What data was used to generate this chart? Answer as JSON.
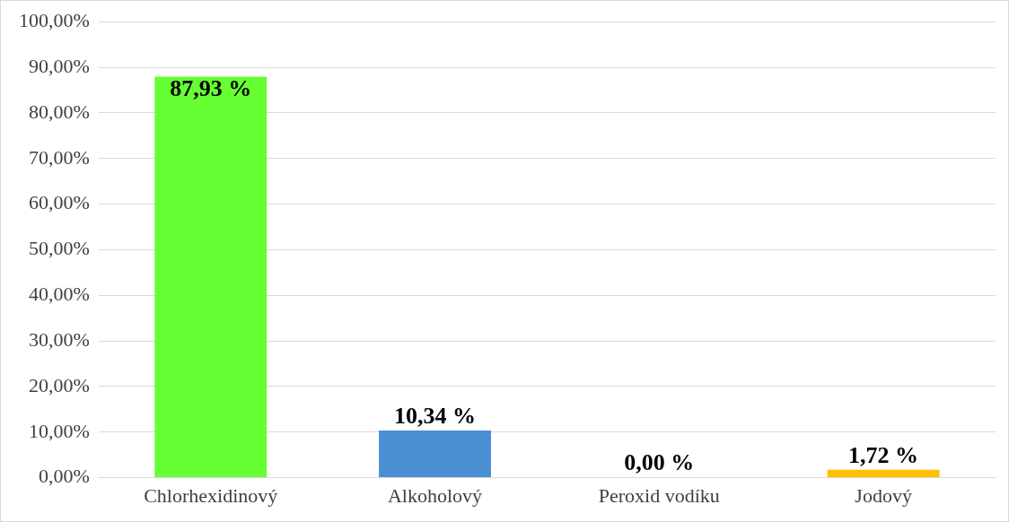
{
  "chart_data": {
    "type": "bar",
    "categories": [
      "Chlorhexidinový",
      "Alkoholový",
      "Peroxid vodíku",
      "Jodový"
    ],
    "values": [
      87.93,
      10.34,
      0,
      1.72
    ],
    "colors": [
      "#66ff33",
      "#4a8fd4",
      "#a5a5a5",
      "#ffc000"
    ],
    "value_labels": [
      "87,93 %",
      "10,34 %",
      "0,00 %",
      "1,72 %"
    ],
    "ylim": [
      0,
      100
    ],
    "yticks": [
      {
        "value": 0,
        "label": "0,00%"
      },
      {
        "value": 10,
        "label": "10,00%"
      },
      {
        "value": 20,
        "label": "20,00%"
      },
      {
        "value": 30,
        "label": "30,00%"
      },
      {
        "value": 40,
        "label": "40,00%"
      },
      {
        "value": 50,
        "label": "50,00%"
      },
      {
        "value": 60,
        "label": "60,00%"
      },
      {
        "value": 70,
        "label": "70,00%"
      },
      {
        "value": 80,
        "label": "80,00%"
      },
      {
        "value": 90,
        "label": "90,00%"
      },
      {
        "value": 100,
        "label": "100,00%"
      }
    ],
    "grid": "y",
    "legend": false
  }
}
